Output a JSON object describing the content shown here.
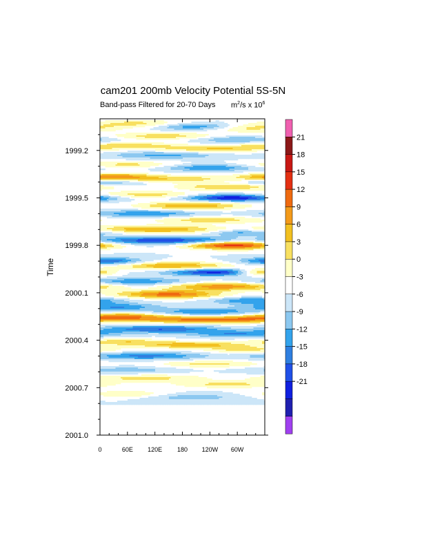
{
  "chart_data": {
    "type": "heatmap",
    "title": "cam201 200mb Velocity Potential 5S-5N",
    "subtitle_left": "Band-pass Filtered for 20-70 Days",
    "units": {
      "text": "m",
      "sup1": "2",
      "mid": "/s x 10",
      "sup2": "6"
    },
    "ylabel": "Time",
    "xlabel": "",
    "x_ticks": [
      "0",
      "60E",
      "120E",
      "180",
      "120W",
      "60W"
    ],
    "x_tick_values": [
      0,
      60,
      120,
      180,
      240,
      300
    ],
    "xlim": [
      0,
      360
    ],
    "y_ticks": [
      "1999.2",
      "1999.5",
      "1999.8",
      "2000.1",
      "2000.4",
      "2000.7",
      "2001.0"
    ],
    "y_tick_values": [
      1999.2,
      1999.5,
      1999.8,
      2000.1,
      2000.4,
      2000.7,
      2001.0
    ],
    "ylim": [
      1999.0,
      2001.0
    ],
    "data_y_range": [
      1999.0,
      2000.8
    ],
    "colorbar_labels": [
      "21",
      "18",
      "15",
      "12",
      "9",
      "6",
      "3",
      "0",
      "-3",
      "-6",
      "-9",
      "-12",
      "-15",
      "-18",
      "-21"
    ],
    "colorbar_levels": [
      -21,
      -18,
      -15,
      -12,
      -9,
      -6,
      -3,
      0,
      3,
      6,
      9,
      12,
      15,
      18,
      21
    ],
    "colorbar_colors": [
      "#a040f0",
      "#2020b0",
      "#1020e0",
      "#2050e8",
      "#2f7fe0",
      "#33a3ec",
      "#8cc8f0",
      "#cce6f8",
      "#ffffff",
      "#ffffc8",
      "#f8e060",
      "#f2c020",
      "#f39a1a",
      "#ef6a10",
      "#e43012",
      "#c81814",
      "#8c1818",
      "#f060b0"
    ],
    "bands": [
      {
        "t": 1999.03,
        "lon": 80,
        "val": 7,
        "w": 70,
        "tw": 0.018
      },
      {
        "t": 1999.05,
        "lon": 210,
        "val": -9,
        "w": 60,
        "tw": 0.015
      },
      {
        "t": 1999.06,
        "lon": 320,
        "val": 7,
        "w": 60,
        "tw": 0.018
      },
      {
        "t": 1999.11,
        "lon": 140,
        "val": 8,
        "w": 90,
        "tw": 0.016
      },
      {
        "t": 1999.13,
        "lon": 300,
        "val": -7,
        "w": 70,
        "tw": 0.016
      },
      {
        "t": 1999.17,
        "lon": 60,
        "val": 8,
        "w": 80,
        "tw": 0.016
      },
      {
        "t": 1999.19,
        "lon": 250,
        "val": 9,
        "w": 80,
        "tw": 0.016
      },
      {
        "t": 1999.23,
        "lon": 140,
        "val": -7,
        "w": 80,
        "tw": 0.016
      },
      {
        "t": 1999.29,
        "lon": 60,
        "val": 7,
        "w": 70,
        "tw": 0.016
      },
      {
        "t": 1999.31,
        "lon": 240,
        "val": -9,
        "w": 70,
        "tw": 0.015
      },
      {
        "t": 1999.37,
        "lon": 30,
        "val": 15,
        "w": 60,
        "tw": 0.018
      },
      {
        "t": 1999.38,
        "lon": 180,
        "val": 8,
        "w": 70,
        "tw": 0.016
      },
      {
        "t": 1999.4,
        "lon": 20,
        "val": -8,
        "w": 50,
        "tw": 0.014
      },
      {
        "t": 1999.43,
        "lon": 280,
        "val": 9,
        "w": 80,
        "tw": 0.016
      },
      {
        "t": 1999.48,
        "lon": 100,
        "val": 8,
        "w": 80,
        "tw": 0.016
      },
      {
        "t": 1999.5,
        "lon": 290,
        "val": -18,
        "w": 70,
        "tw": 0.015
      },
      {
        "t": 1999.55,
        "lon": 200,
        "val": 12,
        "w": 80,
        "tw": 0.018
      },
      {
        "t": 1999.6,
        "lon": 100,
        "val": -9,
        "w": 80,
        "tw": 0.016
      },
      {
        "t": 1999.64,
        "lon": 240,
        "val": 8,
        "w": 90,
        "tw": 0.016
      },
      {
        "t": 1999.7,
        "lon": 120,
        "val": 12,
        "w": 110,
        "tw": 0.018
      },
      {
        "t": 1999.72,
        "lon": 320,
        "val": -8,
        "w": 60,
        "tw": 0.015
      },
      {
        "t": 1999.77,
        "lon": 140,
        "val": -15,
        "w": 110,
        "tw": 0.016
      },
      {
        "t": 1999.8,
        "lon": 290,
        "val": 20,
        "w": 70,
        "tw": 0.018
      },
      {
        "t": 1999.9,
        "lon": 20,
        "val": -12,
        "w": 50,
        "tw": 0.016
      },
      {
        "t": 1999.93,
        "lon": 160,
        "val": 12,
        "w": 90,
        "tw": 0.018
      },
      {
        "t": 1999.97,
        "lon": 270,
        "val": -18,
        "w": 80,
        "tw": 0.016
      },
      {
        "t": 1999.97,
        "lon": 345,
        "val": 18,
        "w": 40,
        "tw": 0.016
      },
      {
        "t": 2000.03,
        "lon": 80,
        "val": -9,
        "w": 80,
        "tw": 0.016
      },
      {
        "t": 2000.06,
        "lon": 270,
        "val": 14,
        "w": 90,
        "tw": 0.018
      },
      {
        "t": 2000.11,
        "lon": 150,
        "val": 16,
        "w": 80,
        "tw": 0.018
      },
      {
        "t": 2000.15,
        "lon": 330,
        "val": -9,
        "w": 60,
        "tw": 0.016
      },
      {
        "t": 2000.19,
        "lon": 40,
        "val": -9,
        "w": 60,
        "tw": 0.016
      },
      {
        "t": 2000.22,
        "lon": 230,
        "val": -9,
        "w": 80,
        "tw": 0.016
      },
      {
        "t": 2000.25,
        "lon": 50,
        "val": 14,
        "w": 60,
        "tw": 0.016
      },
      {
        "t": 2000.27,
        "lon": 190,
        "val": 14,
        "w": 80,
        "tw": 0.016
      },
      {
        "t": 2000.27,
        "lon": 320,
        "val": 10,
        "w": 60,
        "tw": 0.016
      },
      {
        "t": 2000.33,
        "lon": 130,
        "val": -12,
        "w": 90,
        "tw": 0.016
      },
      {
        "t": 2000.36,
        "lon": 300,
        "val": -9,
        "w": 70,
        "tw": 0.016
      },
      {
        "t": 2000.41,
        "lon": 50,
        "val": 8,
        "w": 60,
        "tw": 0.016
      },
      {
        "t": 2000.43,
        "lon": 200,
        "val": 11,
        "w": 80,
        "tw": 0.016
      },
      {
        "t": 2000.46,
        "lon": 320,
        "val": 7,
        "w": 60,
        "tw": 0.016
      },
      {
        "t": 2000.5,
        "lon": 100,
        "val": -10,
        "w": 90,
        "tw": 0.016
      },
      {
        "t": 2000.55,
        "lon": 240,
        "val": 7,
        "w": 80,
        "tw": 0.016
      },
      {
        "t": 2000.59,
        "lon": 60,
        "val": -5,
        "w": 70,
        "tw": 0.016
      },
      {
        "t": 2000.64,
        "lon": 100,
        "val": 7,
        "w": 100,
        "tw": 0.018
      },
      {
        "t": 2000.68,
        "lon": 280,
        "val": 7,
        "w": 80,
        "tw": 0.016
      },
      {
        "t": 2000.74,
        "lon": 60,
        "val": 6,
        "w": 60,
        "tw": 0.016
      },
      {
        "t": 2000.76,
        "lon": 200,
        "val": -5,
        "w": 70,
        "tw": 0.016
      }
    ]
  }
}
